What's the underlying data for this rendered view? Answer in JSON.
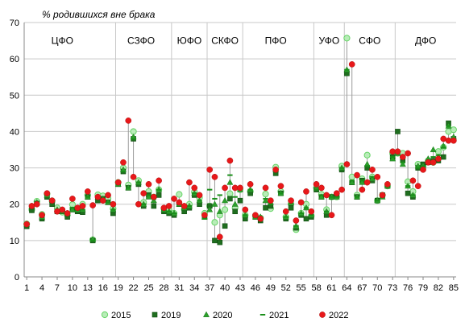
{
  "chart_data": {
    "type": "scatter",
    "title": "% родившихся вне брака",
    "xlabel": "",
    "ylabel": "",
    "ylim": [
      0,
      70
    ],
    "yticks": [
      0,
      10,
      20,
      30,
      40,
      50,
      60,
      70
    ],
    "xlim": [
      0.5,
      85.5
    ],
    "xticks": [
      1,
      4,
      7,
      10,
      13,
      16,
      19,
      22,
      25,
      28,
      31,
      34,
      37,
      40,
      43,
      46,
      49,
      52,
      55,
      58,
      61,
      64,
      67,
      70,
      73,
      76,
      79,
      82,
      85
    ],
    "grid": "horizontal",
    "legend_position": "bottom",
    "region_boundaries": [
      18.5,
      29.5,
      36.5,
      43.5,
      57.5,
      63.5,
      73.5
    ],
    "regions": [
      {
        "label": "ЦФО",
        "x": 8
      },
      {
        "label": "СЗФО",
        "x": 23.5
      },
      {
        "label": "ЮФО",
        "x": 33
      },
      {
        "label": "СКФО",
        "x": 40
      },
      {
        "label": "ПФО",
        "x": 50
      },
      {
        "label": "УФО",
        "x": 60.5
      },
      {
        "label": "СФО",
        "x": 68.5
      },
      {
        "label": "ДФО",
        "x": 79.5
      }
    ],
    "series": [
      {
        "name": "2015",
        "color": "#66d466",
        "values": [
          14.6,
          18.5,
          20.8,
          17.2,
          22.8,
          20.9,
          19.0,
          17.8,
          17.0,
          19.9,
          18.6,
          20.0,
          22.5,
          10.2,
          22.6,
          22.3,
          21.6,
          18.8,
          26.0,
          30.0,
          25.3,
          40.0,
          26.5,
          20.5,
          23.5,
          22.0,
          24.0,
          18.8,
          18.5,
          17.5,
          22.7,
          18.6,
          20.0,
          23.4,
          21.8,
          17.5,
          19.5,
          15.0,
          17.0,
          18.5,
          22.9,
          19.0,
          24.0,
          17.0,
          23.5,
          16.8,
          16.2,
          22.8,
          18.8,
          30.2,
          23.5,
          16.5,
          20.1,
          13.0,
          17.5,
          20.0,
          16.8,
          24.5,
          22.7,
          18.5,
          22.0,
          22.0,
          30.5,
          65.7,
          27.5,
          22.5,
          27.0,
          33.5,
          27.5,
          21.0,
          22.5,
          25.0,
          34.0,
          34.0,
          34.0,
          26.2,
          23.5,
          31.0,
          30.5,
          32.0,
          31.5,
          34.5,
          35.7,
          40.0,
          40.5
        ]
      },
      {
        "name": "2019",
        "color": "#1f6e1f",
        "values": [
          13.9,
          18.3,
          20.2,
          16.0,
          22.0,
          20.0,
          18.0,
          18.0,
          16.5,
          18.5,
          18.0,
          17.8,
          22.0,
          10.0,
          21.0,
          21.5,
          20.5,
          17.5,
          25.5,
          29.0,
          24.5,
          38.0,
          25.5,
          19.5,
          22.5,
          19.5,
          22.5,
          18.0,
          17.5,
          17.0,
          20.0,
          18.0,
          19.0,
          22.5,
          20.0,
          16.5,
          19.5,
          10.0,
          9.5,
          14.0,
          21.5,
          18.0,
          21.0,
          16.0,
          23.0,
          16.5,
          15.5,
          19.0,
          19.5,
          28.5,
          23.0,
          16.0,
          19.0,
          13.5,
          17.0,
          16.0,
          16.5,
          24.0,
          22.0,
          17.0,
          22.0,
          22.5,
          29.5,
          56.0,
          26.0,
          22.0,
          26.5,
          30.0,
          26.5,
          21.0,
          22.5,
          25.0,
          33.0,
          40.0,
          32.0,
          23.0,
          22.0,
          30.0,
          31.0,
          31.5,
          32.0,
          32.0,
          33.0,
          42.3,
          38.0
        ]
      },
      {
        "name": "2020",
        "color": "#2ca02c",
        "values": [
          14.5,
          19.5,
          20.5,
          16.5,
          22.5,
          21.0,
          18.5,
          18.0,
          17.5,
          18.5,
          18.5,
          18.5,
          22.0,
          10.3,
          22.0,
          21.5,
          20.5,
          18.5,
          25.5,
          29.5,
          24.5,
          38.5,
          26.0,
          20.0,
          22.0,
          21.0,
          24.0,
          18.5,
          18.0,
          17.5,
          20.0,
          19.0,
          19.5,
          23.0,
          21.0,
          16.5,
          18.5,
          20.0,
          18.0,
          21.0,
          26.0,
          20.0,
          24.0,
          17.0,
          24.0,
          16.5,
          16.5,
          21.0,
          20.5,
          29.5,
          23.0,
          16.5,
          20.5,
          14.0,
          17.5,
          19.0,
          17.0,
          24.5,
          22.0,
          18.0,
          22.0,
          22.0,
          30.0,
          57.0,
          26.0,
          22.0,
          26.0,
          31.0,
          27.0,
          21.0,
          22.0,
          25.0,
          32.5,
          34.0,
          31.0,
          25.0,
          22.5,
          30.5,
          30.5,
          32.5,
          35.0,
          33.0,
          36.0,
          41.5,
          38.5
        ]
      },
      {
        "name": "2021",
        "color": "#1a8f1a",
        "values": [
          14.0,
          19.0,
          20.5,
          16.8,
          22.5,
          21.0,
          18.5,
          18.0,
          17.0,
          19.0,
          18.5,
          18.5,
          22.0,
          10.0,
          22.0,
          21.5,
          20.5,
          18.5,
          25.5,
          29.0,
          24.5,
          38.0,
          26.0,
          20.0,
          22.5,
          21.5,
          24.0,
          18.5,
          18.0,
          17.5,
          20.5,
          19.0,
          19.5,
          23.0,
          21.0,
          16.0,
          24.0,
          21.5,
          22.5,
          24.5,
          28.0,
          22.0,
          24.5,
          17.0,
          24.0,
          16.5,
          16.5,
          21.5,
          20.0,
          29.5,
          23.0,
          16.5,
          20.0,
          14.0,
          17.5,
          19.0,
          17.0,
          24.0,
          22.5,
          18.0,
          22.0,
          22.0,
          30.0,
          57.0,
          26.5,
          22.0,
          26.5,
          30.5,
          27.5,
          21.0,
          22.0,
          25.0,
          33.0,
          34.0,
          31.5,
          25.0,
          22.5,
          30.0,
          30.5,
          32.0,
          33.0,
          33.5,
          35.5,
          41.5,
          38.0
        ]
      },
      {
        "name": "2022",
        "color": "#e8181a",
        "values": [
          14.5,
          19.5,
          20.0,
          17.0,
          23.0,
          21.0,
          18.0,
          18.5,
          17.5,
          21.5,
          19.0,
          19.5,
          23.5,
          19.7,
          22.0,
          21.0,
          22.5,
          20.0,
          26.0,
          31.5,
          43.0,
          27.5,
          20.0,
          23.0,
          25.5,
          22.0,
          26.5,
          19.0,
          19.5,
          21.5,
          20.5,
          19.5,
          26.0,
          24.5,
          22.5,
          17.0,
          29.5,
          27.5,
          11.0,
          24.5,
          32.0,
          24.5,
          24.5,
          18.5,
          25.5,
          17.0,
          16.0,
          24.5,
          21.0,
          29.5,
          25.0,
          18.0,
          21.0,
          15.5,
          20.5,
          23.5,
          18.0,
          25.5,
          24.5,
          22.5,
          17.0,
          23.0,
          24.0,
          31.0,
          58.5,
          28.0,
          24.0,
          26.0,
          29.5,
          27.5,
          22.5,
          25.5,
          34.5,
          34.5,
          33.0,
          34.0,
          26.5,
          25.0,
          29.5,
          31.5,
          31.5,
          32.5,
          38.0,
          37.5,
          37.5
        ]
      }
    ]
  }
}
